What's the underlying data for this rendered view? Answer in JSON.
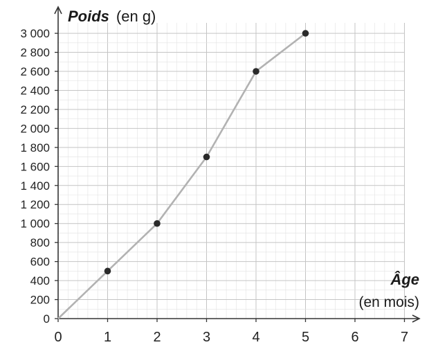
{
  "chart_data": {
    "type": "line",
    "ylabel_main": "Poids",
    "ylabel_unit": "(en g)",
    "xlabel_main": "Âge",
    "xlabel_unit": "(en mois)",
    "xlim": [
      0,
      7
    ],
    "ylim": [
      0,
      3000
    ],
    "x_ticks": [
      0,
      1,
      2,
      3,
      4,
      5,
      6,
      7
    ],
    "y_ticks": [
      0,
      200,
      400,
      600,
      800,
      1000,
      1200,
      1400,
      1600,
      1800,
      2000,
      2200,
      2400,
      2600,
      2800,
      3000
    ],
    "x_tick_labels": [
      "0",
      "1",
      "2",
      "3",
      "4",
      "5",
      "6",
      "7"
    ],
    "y_tick_labels": [
      "0",
      "200",
      "400",
      "600",
      "800",
      "1 000",
      "1 200",
      "1 400",
      "1 600",
      "1 800",
      "2 000",
      "2 200",
      "2 400",
      "2 600",
      "2 800",
      "3 000"
    ],
    "grid": true,
    "series": [
      {
        "x": [
          0,
          1,
          2,
          3,
          4,
          5
        ],
        "y": [
          0,
          500,
          1000,
          1700,
          2600,
          3000
        ]
      }
    ],
    "colors": {
      "line": "#b2b2b2",
      "points": "#2b2b2b",
      "axes": "#333333",
      "grid": "#c4c4c4"
    }
  }
}
